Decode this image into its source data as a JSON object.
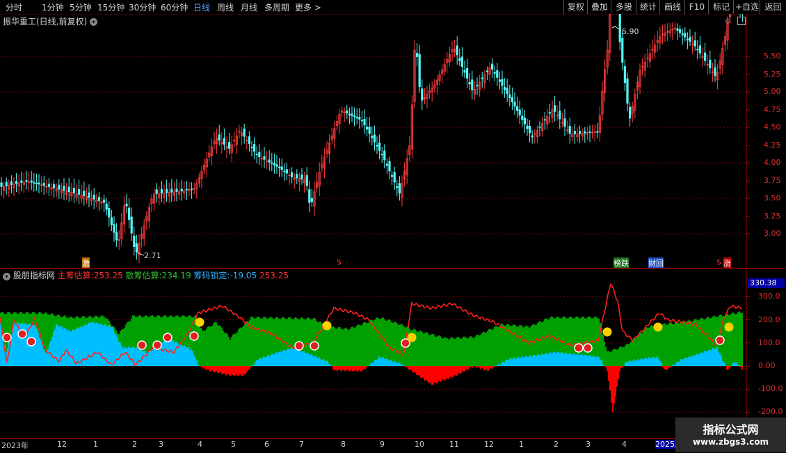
{
  "toolbar": {
    "periods": [
      "分时",
      "1分钟",
      "5分钟",
      "15分钟",
      "30分钟",
      "60分钟",
      "日线",
      "周线",
      "月线",
      "多周期",
      "更多 >"
    ],
    "active_period": "日线",
    "actions": [
      "复权",
      "叠加",
      "多股",
      "统计",
      "画线",
      "F10",
      "标记",
      "+自选",
      "返回"
    ]
  },
  "stock_title": "振华重工(日线,前复权)",
  "kline": {
    "y_ticks": [
      "5.50",
      "5.25",
      "5.00",
      "4.75",
      "4.50",
      "4.25",
      "4.00",
      "3.75",
      "3.50",
      "3.25",
      "3.00"
    ],
    "high_label": "5.90",
    "low_label": "2.71",
    "markers": [
      "激",
      "$",
      "榜跌",
      "财回",
      "$",
      "涨"
    ]
  },
  "indicator": {
    "name": "股朋指标网",
    "main_label": "主筹估算:",
    "main_value": "253.25",
    "retail_label": "散筹估算:",
    "retail_value": "234.19",
    "lock_label": "筹码锁定:",
    "lock_value": "-19.05",
    "extra_value": "253.25",
    "axis_current": "330.38",
    "y_ticks": [
      "300.0",
      "200.0",
      "100.0",
      "0.00",
      "-100.0",
      "-200.0"
    ]
  },
  "date_axis": [
    "2023年",
    "12",
    "1",
    "2",
    "3",
    "4",
    "5",
    "6",
    "7",
    "8",
    "9",
    "10",
    "11",
    "12",
    "1",
    "2",
    "3",
    "4",
    "2025/"
  ],
  "watermark": {
    "line1": "指标公式网",
    "line2": "www.zbgs3.com"
  },
  "colors": {
    "up": "#ff3c3c",
    "down": "#54fcfc",
    "green": "#00a000",
    "blue": "#00bfff",
    "red": "#ff0000",
    "grid": "#7a0000"
  }
}
